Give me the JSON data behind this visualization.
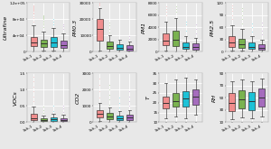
{
  "panels": [
    {
      "title": "Ultrafine",
      "row": 0,
      "col": 0,
      "ylim": [
        0,
        120000
      ],
      "yticks": [
        0,
        40000,
        80000,
        120000
      ],
      "yticklabels": [
        "0",
        "4e+04",
        "8e+04",
        "1.2e+05"
      ],
      "boxes": [
        {
          "q1": 14000,
          "median": 22000,
          "q3": 36000,
          "whislo": 1000,
          "whishi": 65000,
          "fliers": [
            75000,
            82000,
            88000,
            93000,
            97000,
            100000,
            103000,
            106000,
            108000,
            110000,
            112000,
            115000
          ],
          "color": "#f08080"
        },
        {
          "q1": 11000,
          "median": 20000,
          "q3": 30000,
          "whislo": 2000,
          "whishi": 50000,
          "fliers": [
            60000,
            67000,
            72000,
            76000,
            80000,
            83000,
            86000,
            88000,
            90000
          ],
          "color": "#6aaa3a"
        },
        {
          "q1": 12000,
          "median": 23000,
          "q3": 35000,
          "whislo": 2000,
          "whishi": 58000,
          "fliers": [
            68000,
            74000,
            80000
          ],
          "color": "#00bcd4"
        },
        {
          "q1": 9000,
          "median": 17000,
          "q3": 28000,
          "whislo": 1000,
          "whishi": 46000,
          "fliers": [
            55000,
            62000,
            67000
          ],
          "color": "#9b59b6"
        }
      ]
    },
    {
      "title": "PM0.3",
      "row": 0,
      "col": 1,
      "ylim": [
        0,
        30000
      ],
      "yticks": [
        0,
        10000,
        20000,
        30000
      ],
      "yticklabels": [
        "0",
        "10000",
        "20000",
        "30000"
      ],
      "boxes": [
        {
          "q1": 7000,
          "median": 14000,
          "q3": 20000,
          "whislo": 500,
          "whishi": 27000,
          "fliers": [
            28500,
            29000,
            29500,
            30000
          ],
          "color": "#f08080"
        },
        {
          "q1": 1800,
          "median": 3500,
          "q3": 6000,
          "whislo": 200,
          "whishi": 10000,
          "fliers": [
            12000,
            14000,
            16000,
            18000
          ],
          "color": "#6aaa3a"
        },
        {
          "q1": 1200,
          "median": 2500,
          "q3": 4500,
          "whislo": 200,
          "whishi": 7500,
          "fliers": [],
          "color": "#00bcd4"
        },
        {
          "q1": 900,
          "median": 2000,
          "q3": 3800,
          "whislo": 150,
          "whishi": 6000,
          "fliers": [
            8000,
            9500
          ],
          "color": "#9b59b6"
        }
      ]
    },
    {
      "title": "PM1",
      "row": 0,
      "col": 2,
      "ylim": [
        0,
        8000
      ],
      "yticks": [
        0,
        2000,
        4000,
        6000,
        8000
      ],
      "yticklabels": [
        "0",
        "2000",
        "4000",
        "6000",
        "8000"
      ],
      "boxes": [
        {
          "q1": 1000,
          "median": 1800,
          "q3": 3000,
          "whislo": 150,
          "whishi": 5000,
          "fliers": [
            6000,
            6500,
            7000,
            7500
          ],
          "color": "#f08080"
        },
        {
          "q1": 900,
          "median": 2000,
          "q3": 3500,
          "whislo": 100,
          "whishi": 5500,
          "fliers": [
            6500,
            7000,
            7500
          ],
          "color": "#6aaa3a"
        },
        {
          "q1": 400,
          "median": 800,
          "q3": 1500,
          "whislo": 80,
          "whishi": 2500,
          "fliers": [
            3500,
            4500,
            5000
          ],
          "color": "#00bcd4"
        },
        {
          "q1": 350,
          "median": 750,
          "q3": 1300,
          "whislo": 60,
          "whishi": 2200,
          "fliers": [
            3000,
            3800,
            4500
          ],
          "color": "#9b59b6"
        }
      ]
    },
    {
      "title": "PM2.5",
      "row": 0,
      "col": 3,
      "ylim": [
        0,
        120
      ],
      "yticks": [
        0,
        30,
        60,
        90,
        120
      ],
      "yticklabels": [
        "0",
        "30",
        "60",
        "90",
        "120"
      ],
      "boxes": [
        {
          "q1": 12,
          "median": 22,
          "q3": 38,
          "whislo": 2,
          "whishi": 65,
          "fliers": [
            80,
            90,
            100,
            108,
            115
          ],
          "color": "#f08080"
        },
        {
          "q1": 10,
          "median": 19,
          "q3": 32,
          "whislo": 2,
          "whishi": 55,
          "fliers": [
            70,
            80,
            90,
            100,
            108
          ],
          "color": "#6aaa3a"
        },
        {
          "q1": 6,
          "median": 12,
          "q3": 22,
          "whislo": 1,
          "whishi": 38,
          "fliers": [
            50,
            60,
            70
          ],
          "color": "#00bcd4"
        },
        {
          "q1": 5,
          "median": 10,
          "q3": 18,
          "whislo": 1,
          "whishi": 30,
          "fliers": [
            42,
            52,
            62,
            72
          ],
          "color": "#9b59b6"
        }
      ]
    },
    {
      "title": "VOCs",
      "row": 1,
      "col": 0,
      "ylim": [
        0,
        1.5
      ],
      "yticks": [
        0.0,
        0.5,
        1.0,
        1.5
      ],
      "yticklabels": [
        "0.0",
        "0.5",
        "1.0",
        "1.5"
      ],
      "boxes": [
        {
          "q1": 0.07,
          "median": 0.13,
          "q3": 0.25,
          "whislo": 0.01,
          "whishi": 0.48,
          "fliers": [
            0.65,
            0.8,
            0.95,
            1.1,
            1.25,
            1.4
          ],
          "color": "#f08080"
        },
        {
          "q1": 0.03,
          "median": 0.06,
          "q3": 0.12,
          "whislo": 0.005,
          "whishi": 0.2,
          "fliers": [
            0.28,
            0.38,
            0.48
          ],
          "color": "#6aaa3a"
        },
        {
          "q1": 0.04,
          "median": 0.08,
          "q3": 0.15,
          "whislo": 0.005,
          "whishi": 0.25,
          "fliers": [
            0.35,
            0.5
          ],
          "color": "#00bcd4"
        },
        {
          "q1": 0.03,
          "median": 0.07,
          "q3": 0.13,
          "whislo": 0.005,
          "whishi": 0.22,
          "fliers": [
            0.32,
            0.42,
            0.52
          ],
          "color": "#9b59b6"
        }
      ]
    },
    {
      "title": "CO2",
      "row": 1,
      "col": 1,
      "ylim": [
        0,
        3000
      ],
      "yticks": [
        0,
        1000,
        2000,
        3000
      ],
      "yticklabels": [
        "0",
        "1000",
        "2000",
        "3000"
      ],
      "boxes": [
        {
          "q1": 300,
          "median": 500,
          "q3": 750,
          "whislo": 50,
          "whishi": 1200,
          "fliers": [
            1500,
            1900,
            2300,
            2700
          ],
          "color": "#f08080"
        },
        {
          "q1": 180,
          "median": 350,
          "q3": 550,
          "whislo": 40,
          "whishi": 900,
          "fliers": [
            1100,
            1400,
            1700,
            2000,
            2300
          ],
          "color": "#6aaa3a"
        },
        {
          "q1": 130,
          "median": 250,
          "q3": 400,
          "whislo": 30,
          "whishi": 680,
          "fliers": [
            900,
            1200,
            1500
          ],
          "color": "#00bcd4"
        },
        {
          "q1": 150,
          "median": 290,
          "q3": 460,
          "whislo": 35,
          "whishi": 750,
          "fliers": [
            1000,
            1300,
            1600,
            1900
          ],
          "color": "#9b59b6"
        }
      ]
    },
    {
      "title": "T",
      "row": 1,
      "col": 2,
      "ylim": [
        10,
        35
      ],
      "yticks": [
        10,
        15,
        20,
        25,
        30,
        35
      ],
      "yticklabels": [
        "10",
        "15",
        "20",
        "25",
        "30",
        "35"
      ],
      "boxes": [
        {
          "q1": 17,
          "median": 20,
          "q3": 23,
          "whislo": 12,
          "whishi": 30,
          "fliers": [],
          "color": "#f08080"
        },
        {
          "q1": 18,
          "median": 21,
          "q3": 25,
          "whislo": 13,
          "whishi": 32,
          "fliers": [],
          "color": "#6aaa3a"
        },
        {
          "q1": 18,
          "median": 22,
          "q3": 26,
          "whislo": 12,
          "whishi": 33,
          "fliers": [],
          "color": "#00bcd4"
        },
        {
          "q1": 19,
          "median": 23,
          "q3": 27,
          "whislo": 14,
          "whishi": 32,
          "fliers": [],
          "color": "#9b59b6"
        }
      ]
    },
    {
      "title": "RH",
      "row": 1,
      "col": 3,
      "ylim": [
        10,
        90
      ],
      "yticks": [
        10,
        30,
        50,
        70,
        90
      ],
      "yticklabels": [
        "10",
        "30",
        "50",
        "70",
        "90"
      ],
      "boxes": [
        {
          "q1": 28,
          "median": 42,
          "q3": 58,
          "whislo": 15,
          "whishi": 78,
          "fliers": [],
          "color": "#f08080"
        },
        {
          "q1": 32,
          "median": 48,
          "q3": 62,
          "whislo": 18,
          "whishi": 80,
          "fliers": [],
          "color": "#6aaa3a"
        },
        {
          "q1": 30,
          "median": 45,
          "q3": 60,
          "whislo": 16,
          "whishi": 78,
          "fliers": [],
          "color": "#00bcd4"
        },
        {
          "q1": 35,
          "median": 50,
          "q3": 65,
          "whislo": 20,
          "whishi": 82,
          "fliers": [],
          "color": "#9b59b6"
        }
      ]
    }
  ],
  "bg_color": "#e8e8e8",
  "plot_bg": "#e8e8e8",
  "schools": [
    "Sch-1",
    "Sch-2",
    "Sch-3",
    "Sch-4"
  ],
  "tick_fontsize": 3.5,
  "title_fontsize": 4.5
}
